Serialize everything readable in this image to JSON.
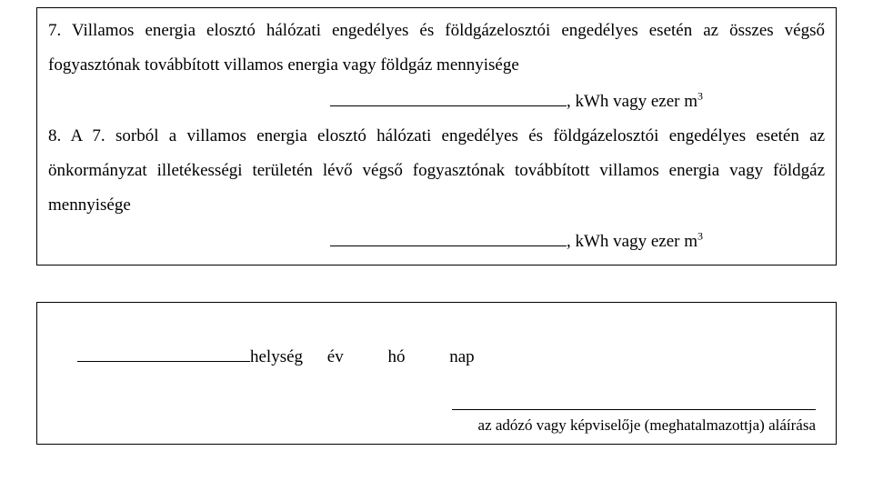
{
  "section7": {
    "text_a": "7. Villamos energia elosztó hálózati engedélyes és földgázelosztói engedélyes esetén az összes végső fogyasztónak továbbított villamos energia vagy földgáz mennyisége",
    "unit": ", kWh vagy ezer m",
    "sup": "3"
  },
  "section8": {
    "text_a": "8. A 7. sorból a villamos energia elosztó hálózati engedélyes és földgázelosztói engedélyes esetén az önkormányzat illetékességi területén lévő végső fogyasztónak továbbított villamos energia vagy földgáz mennyisége",
    "unit": ", kWh vagy ezer m",
    "sup": "3"
  },
  "date_row": {
    "place": "helység",
    "year": "év",
    "month": "hó",
    "day": "nap"
  },
  "signature": {
    "caption": "az adózó vagy képviselője (meghatalmazottja) aláírása"
  },
  "colors": {
    "text": "#000000",
    "background": "#ffffff",
    "border": "#000000"
  },
  "typography": {
    "family": "Times New Roman",
    "body_fontsize_pt": 14,
    "line_height": 2.0
  }
}
